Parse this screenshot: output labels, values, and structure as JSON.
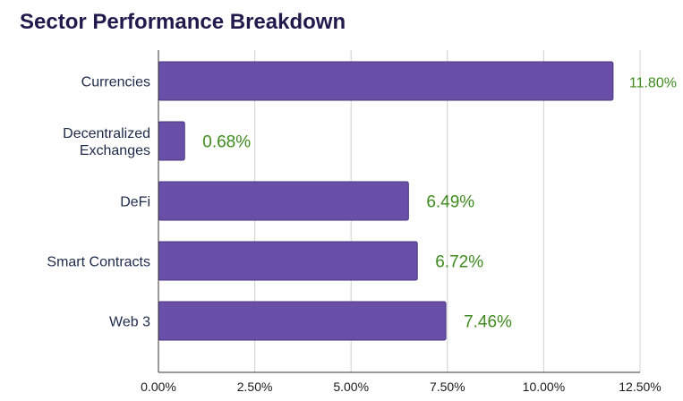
{
  "chart_data": {
    "type": "bar",
    "orientation": "horizontal",
    "title": "Sector Performance Breakdown",
    "categories": [
      [
        "Currencies"
      ],
      [
        "Decentralized",
        "Exchanges"
      ],
      [
        "DeFi"
      ],
      [
        "Smart Contracts"
      ],
      [
        "Web 3"
      ]
    ],
    "values": [
      11.8,
      0.68,
      6.49,
      6.72,
      7.46
    ],
    "data_labels": [
      "11.80%",
      "0.68%",
      "6.49%",
      "6.72%",
      "7.46%"
    ],
    "xlim": [
      0,
      12.5
    ],
    "x_ticks": [
      0,
      2.5,
      5,
      7.5,
      10,
      12.5
    ],
    "x_tick_labels": [
      "0.00%",
      "2.50%",
      "5.00%",
      "7.50%",
      "10.00%",
      "12.50%"
    ],
    "grid": "vertical",
    "legend": "none",
    "colors": {
      "bar": "#6a4fa8",
      "bar_stroke": "#4a3582",
      "data_label": "#3f8a1f",
      "title": "#22194d",
      "grid": "#d0d0d0"
    }
  }
}
